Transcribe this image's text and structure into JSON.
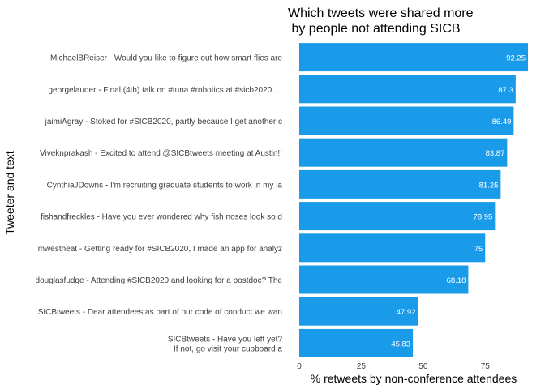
{
  "chart_data": {
    "type": "bar",
    "orientation": "horizontal",
    "title": "Which tweets were shared more\n by people not attending SICB",
    "xlabel": "% retweets by non-conference attendees",
    "ylabel": "Tweeter and text",
    "xlim": [
      0,
      92.25
    ],
    "xticks": [
      0,
      25,
      50,
      75
    ],
    "grid": false,
    "bar_color": "#1a9bea",
    "label_color": "#ffffff",
    "categories": [
      "MichaelBReiser - Would you like to figure out how smart flies are",
      "georgelauder - Final (4th) talk on #tuna #robotics at #sicb2020 …",
      "jaimiAgray - Stoked for #SICB2020, partly because I get another c",
      "Viveknprakash - Excited to attend @SICBtweets meeting at Austin!!",
      "CynthiaJDowns - I'm recruiting graduate students to work in my la",
      "fishandfreckles - Have you ever wondered why fish noses look so d",
      "mwestneat - Getting ready for #SICB2020, I made an app for analyz",
      "douglasfudge - Attending #SICB2020 and looking for a postdoc? The",
      "SICBtweets - Dear attendees:as part of our code of conduct we wan",
      "SICBtweets - Have you left yet?\nIf not, go visit your cupboard a"
    ],
    "values": [
      92.25,
      87.3,
      86.49,
      83.87,
      81.25,
      78.95,
      75,
      68.18,
      47.92,
      45.83
    ],
    "value_labels": [
      "92.25",
      "87.3",
      "86.49",
      "83.87",
      "81.25",
      "78.95",
      "75",
      "68.18",
      "47.92",
      "45.83"
    ]
  }
}
